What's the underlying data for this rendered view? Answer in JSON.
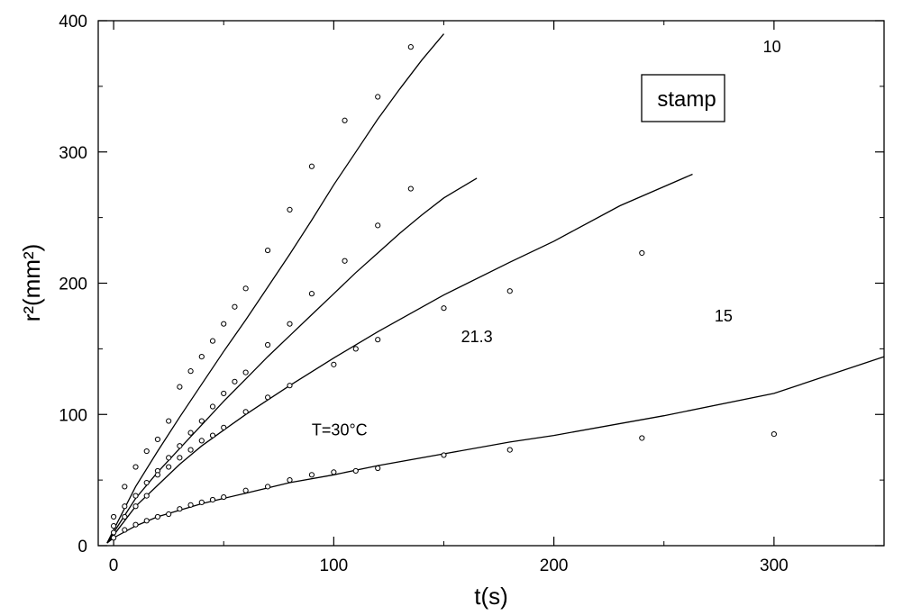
{
  "chart_data": {
    "type": "scatter",
    "xlabel": "t(s)",
    "ylabel": "r²(mm²)",
    "xlim": [
      -7,
      350
    ],
    "ylim": [
      0,
      400
    ],
    "xticks": [
      0,
      100,
      200,
      300
    ],
    "yticks": [
      0,
      100,
      200,
      300,
      400
    ],
    "grid": false,
    "annotation": "stamp",
    "series": [
      {
        "label": "T=30°C",
        "points": [
          [
            0,
            22
          ],
          [
            5,
            45
          ],
          [
            10,
            60
          ],
          [
            15,
            72
          ],
          [
            20,
            81
          ],
          [
            25,
            95
          ],
          [
            30,
            121
          ],
          [
            35,
            133
          ],
          [
            40,
            144
          ],
          [
            45,
            156
          ],
          [
            50,
            169
          ],
          [
            55,
            182
          ],
          [
            60,
            196
          ],
          [
            70,
            225
          ],
          [
            80,
            256
          ],
          [
            90,
            289
          ],
          [
            105,
            324
          ],
          [
            120,
            342
          ],
          [
            135,
            380
          ]
        ],
        "fit": [
          [
            -3,
            2
          ],
          [
            0,
            12
          ],
          [
            10,
            45
          ],
          [
            20,
            72
          ],
          [
            30,
            98
          ],
          [
            40,
            123
          ],
          [
            50,
            148
          ],
          [
            60,
            172
          ],
          [
            70,
            197
          ],
          [
            80,
            222
          ],
          [
            90,
            248
          ],
          [
            100,
            275
          ],
          [
            110,
            300
          ],
          [
            120,
            325
          ],
          [
            130,
            348
          ],
          [
            140,
            370
          ],
          [
            150,
            390
          ]
        ]
      },
      {
        "label": "21.3",
        "points": [
          [
            0,
            15
          ],
          [
            5,
            30
          ],
          [
            10,
            38
          ],
          [
            15,
            48
          ],
          [
            20,
            57
          ],
          [
            25,
            67
          ],
          [
            30,
            76
          ],
          [
            35,
            86
          ],
          [
            40,
            95
          ],
          [
            45,
            106
          ],
          [
            50,
            116
          ],
          [
            55,
            125
          ],
          [
            60,
            132
          ],
          [
            70,
            153
          ],
          [
            80,
            169
          ],
          [
            90,
            192
          ],
          [
            105,
            217
          ],
          [
            120,
            244
          ],
          [
            135,
            272
          ]
        ],
        "fit": [
          [
            -3,
            2
          ],
          [
            0,
            10
          ],
          [
            10,
            36
          ],
          [
            20,
            56
          ],
          [
            30,
            74
          ],
          [
            40,
            92
          ],
          [
            50,
            110
          ],
          [
            60,
            127
          ],
          [
            70,
            144
          ],
          [
            80,
            160
          ],
          [
            90,
            176
          ],
          [
            100,
            192
          ],
          [
            110,
            208
          ],
          [
            120,
            223
          ],
          [
            130,
            238
          ],
          [
            140,
            252
          ],
          [
            150,
            265
          ],
          [
            165,
            280
          ]
        ]
      },
      {
        "label": "15",
        "points": [
          [
            0,
            10
          ],
          [
            5,
            22
          ],
          [
            10,
            30
          ],
          [
            15,
            38
          ],
          [
            20,
            54
          ],
          [
            25,
            60
          ],
          [
            30,
            67
          ],
          [
            35,
            73
          ],
          [
            40,
            80
          ],
          [
            45,
            84
          ],
          [
            50,
            90
          ],
          [
            60,
            102
          ],
          [
            70,
            113
          ],
          [
            80,
            122
          ],
          [
            100,
            138
          ],
          [
            110,
            150
          ],
          [
            120,
            157
          ],
          [
            150,
            181
          ],
          [
            180,
            194
          ],
          [
            240,
            223
          ]
        ],
        "fit": [
          [
            -3,
            2
          ],
          [
            0,
            8
          ],
          [
            10,
            30
          ],
          [
            20,
            46
          ],
          [
            30,
            62
          ],
          [
            40,
            76
          ],
          [
            50,
            88
          ],
          [
            60,
            100
          ],
          [
            70,
            111
          ],
          [
            80,
            122
          ],
          [
            100,
            143
          ],
          [
            120,
            163
          ],
          [
            150,
            191
          ],
          [
            180,
            216
          ],
          [
            200,
            232
          ],
          [
            230,
            259
          ],
          [
            263,
            283
          ]
        ]
      },
      {
        "label": "10",
        "points": [
          [
            0,
            6
          ],
          [
            5,
            12
          ],
          [
            10,
            16
          ],
          [
            15,
            19
          ],
          [
            20,
            22
          ],
          [
            25,
            24
          ],
          [
            30,
            28
          ],
          [
            35,
            31
          ],
          [
            40,
            33
          ],
          [
            45,
            35
          ],
          [
            50,
            37
          ],
          [
            60,
            42
          ],
          [
            70,
            45
          ],
          [
            80,
            50
          ],
          [
            90,
            54
          ],
          [
            100,
            56
          ],
          [
            110,
            57
          ],
          [
            120,
            59
          ],
          [
            150,
            69
          ],
          [
            180,
            73
          ],
          [
            240,
            82
          ],
          [
            300,
            85
          ]
        ],
        "fit": [
          [
            -3,
            2
          ],
          [
            0,
            6
          ],
          [
            10,
            15
          ],
          [
            20,
            22
          ],
          [
            30,
            27
          ],
          [
            40,
            32
          ],
          [
            50,
            36
          ],
          [
            60,
            40
          ],
          [
            70,
            44
          ],
          [
            80,
            48
          ],
          [
            100,
            54
          ],
          [
            120,
            61
          ],
          [
            150,
            70
          ],
          [
            180,
            79
          ],
          [
            200,
            84
          ],
          [
            250,
            99
          ],
          [
            300,
            116
          ],
          [
            350,
            144
          ]
        ]
      }
    ]
  }
}
